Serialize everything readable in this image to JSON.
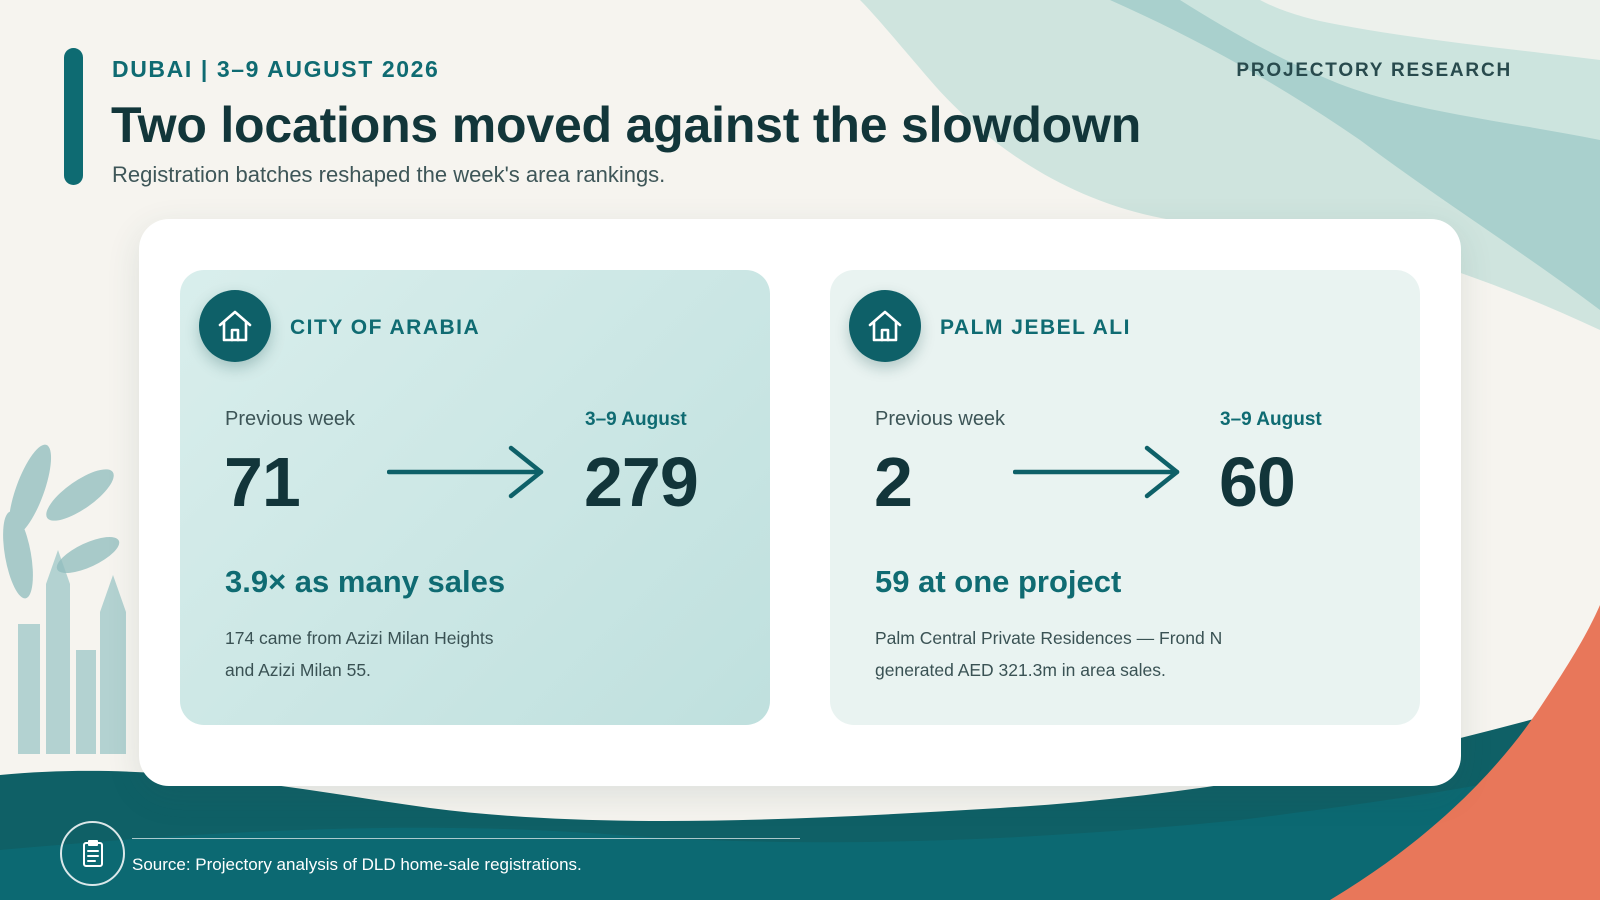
{
  "header": {
    "eyebrow": "DUBAI | 3–9 AUGUST 2026",
    "brand": "PROJECTORY RESEARCH",
    "title": "Two locations moved against the slowdown",
    "subtitle": "Registration batches reshaped the week's area rankings."
  },
  "cards": [
    {
      "icon": "house-icon",
      "name": "CITY OF ARABIA",
      "previous_label": "Previous week",
      "previous_value": "71",
      "current_label": "3–9 August",
      "current_value": "279",
      "headline": "3.9× as many sales",
      "detail_lines": [
        "174 came from Azizi Milan Heights",
        "and Azizi Milan 55."
      ]
    },
    {
      "icon": "house-icon",
      "name": "PALM JEBEL ALI",
      "previous_label": "Previous week",
      "previous_value": "2",
      "current_label": "3–9 August",
      "current_value": "60",
      "headline": "59 at one project",
      "detail_lines": [
        "Palm Central Private Residences — Frond N",
        "generated AED 321.3m in area sales."
      ]
    }
  ],
  "footer": {
    "icon": "document-icon",
    "source": "Source: Projectory analysis of DLD home-sale registrations."
  },
  "colors": {
    "teal_dark": "#0e6068",
    "teal_accent": "#0f6b72",
    "coral": "#e8775a",
    "background": "#f6f4ef"
  }
}
